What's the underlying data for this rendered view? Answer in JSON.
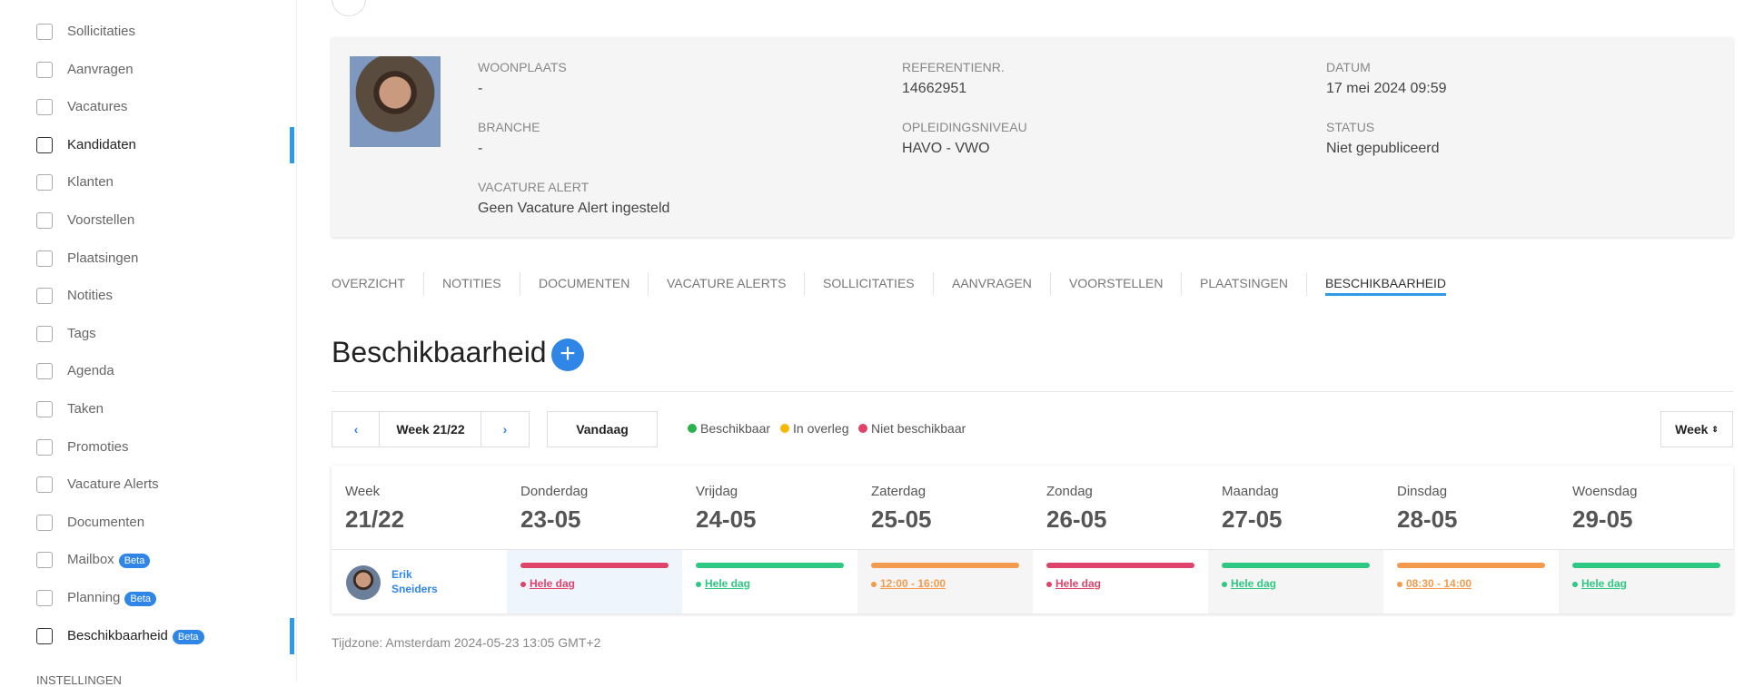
{
  "sidebar": {
    "items": [
      {
        "label": "Sollicitaties"
      },
      {
        "label": "Aanvragen"
      },
      {
        "label": "Vacatures"
      },
      {
        "label": "Kandidaten"
      },
      {
        "label": "Klanten"
      },
      {
        "label": "Voorstellen"
      },
      {
        "label": "Plaatsingen"
      },
      {
        "label": "Notities"
      },
      {
        "label": "Tags"
      },
      {
        "label": "Agenda"
      },
      {
        "label": "Taken"
      },
      {
        "label": "Promoties"
      },
      {
        "label": "Vacature Alerts"
      },
      {
        "label": "Documenten"
      },
      {
        "label": "Mailbox",
        "badge": "Beta"
      },
      {
        "label": "Planning",
        "badge": "Beta"
      },
      {
        "label": "Beschikbaarheid",
        "badge": "Beta"
      }
    ],
    "section": "INSTELLINGEN"
  },
  "profile": {
    "fields": [
      {
        "label": "WOONPLAATS",
        "value": "-"
      },
      {
        "label": "REFERENTIENR.",
        "value": "14662951"
      },
      {
        "label": "DATUM",
        "value": "17 mei 2024 09:59"
      },
      {
        "label": "BRANCHE",
        "value": "-"
      },
      {
        "label": "OPLEIDINGSNIVEAU",
        "value": "HAVO - VWO"
      },
      {
        "label": "STATUS",
        "value": "Niet gepubliceerd"
      },
      {
        "label": "VACATURE ALERT",
        "value": "Geen Vacature Alert ingesteld"
      }
    ]
  },
  "tabs": [
    "OVERZICHT",
    "NOTITIES",
    "DOCUMENTEN",
    "VACATURE ALERTS",
    "SOLLICITATIES",
    "AANVRAGEN",
    "VOORSTELLEN",
    "PLAATSINGEN",
    "BESCHIKBAARHEID"
  ],
  "heading": "Beschikbaarheid",
  "controls": {
    "week": "Week 21/22",
    "today": "Vandaag",
    "view": "Week"
  },
  "legend": [
    {
      "label": "Beschikbaar",
      "color": "#27b24a"
    },
    {
      "label": "In overleg",
      "color": "#f5b700"
    },
    {
      "label": "Niet beschikbaar",
      "color": "#e0436a"
    }
  ],
  "calendar": {
    "corner": {
      "label": "Week",
      "value": "21/22"
    },
    "person": "Erik Sneiders",
    "days": [
      {
        "day": "Donderdag",
        "date": "23-05",
        "slot": "Hele dag",
        "color": "#e0436a"
      },
      {
        "day": "Vrijdag",
        "date": "24-05",
        "slot": "Hele dag",
        "color": "#2fc882"
      },
      {
        "day": "Zaterdag",
        "date": "25-05",
        "slot": "12:00 - 16:00",
        "color": "#f39a4c"
      },
      {
        "day": "Zondag",
        "date": "26-05",
        "slot": "Hele dag",
        "color": "#e0436a"
      },
      {
        "day": "Maandag",
        "date": "27-05",
        "slot": "Hele dag",
        "color": "#2fc882"
      },
      {
        "day": "Dinsdag",
        "date": "28-05",
        "slot": "08:30 - 14:00",
        "color": "#f39a4c"
      },
      {
        "day": "Woensdag",
        "date": "29-05",
        "slot": "Hele dag",
        "color": "#2fc882"
      }
    ]
  },
  "timezone": "Tijdzone: Amsterdam 2024-05-23 13:05 GMT+2"
}
